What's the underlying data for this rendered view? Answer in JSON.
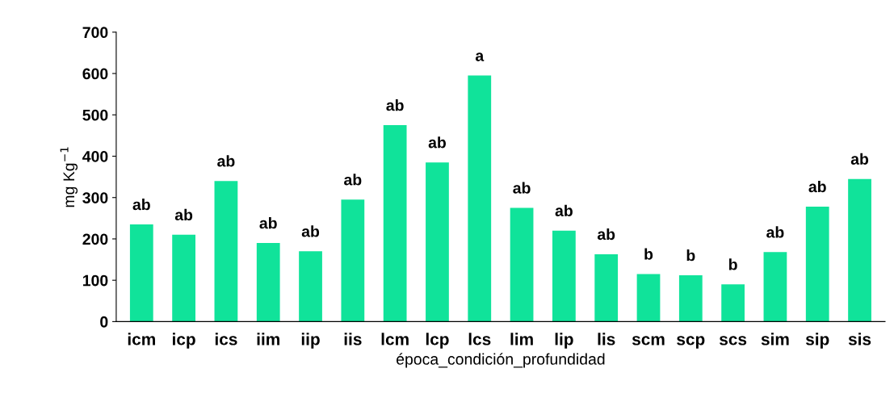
{
  "chart_data": {
    "type": "bar",
    "xlabel": "época_condición_profundidad",
    "ylabel": "mg Kg$^{−1}$",
    "categories": [
      "icm",
      "icp",
      "ics",
      "iim",
      "iip",
      "iis",
      "lcm",
      "lcp",
      "lcs",
      "lim",
      "lip",
      "lis",
      "scm",
      "scp",
      "scs",
      "sim",
      "sip",
      "sis"
    ],
    "values": [
      235,
      210,
      340,
      190,
      170,
      295,
      475,
      385,
      595,
      275,
      220,
      163,
      115,
      112,
      90,
      168,
      278,
      345
    ],
    "value_labels": [
      "ab",
      "ab",
      "ab",
      "ab",
      "ab",
      "ab",
      "ab",
      "ab",
      "a",
      "ab",
      "ab",
      "ab",
      "b",
      "b",
      "b",
      "ab",
      "ab",
      "ab"
    ],
    "color": "#10e39a",
    "ylim": [
      0,
      700
    ],
    "yticks": [
      0,
      100,
      200,
      300,
      400,
      500,
      600,
      700
    ],
    "grid": false,
    "legend": false
  }
}
